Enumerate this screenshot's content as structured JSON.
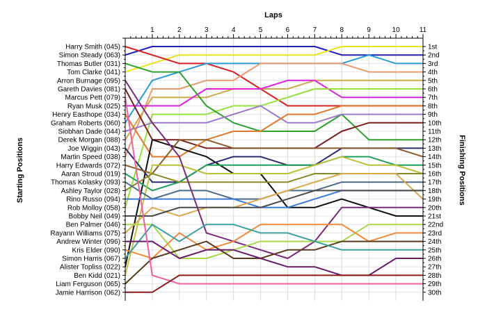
{
  "chart_data": {
    "type": "line",
    "title": "",
    "xlabel": "Laps",
    "ylabel_left": "Starting Positions",
    "ylabel_right": "Finishing Positions",
    "x": [
      0,
      1,
      2,
      3,
      4,
      5,
      6,
      7,
      8,
      9,
      10,
      11
    ],
    "x_tick_labels": [
      "1",
      "2",
      "3",
      "4",
      "5",
      "6",
      "7",
      "8",
      "9",
      "10",
      "11"
    ],
    "y_range": [
      1,
      30
    ],
    "y_inverted": true,
    "grid": true,
    "starting_labels": [
      "Harry Smith (045)",
      "Simon Steady (063)",
      "Thomas Butler (031)",
      "Tom Clarke (041)",
      "Arron Burnage (095)",
      "Gareth Davies (081)",
      "Marcus Pett (079)",
      "Ryan Musk (025)",
      "Henry Easthope (034)",
      "Graham Roberts (060)",
      "Siobhan Dade (044)",
      "Derek Morgan (088)",
      "Joe Wiggin (043)",
      "Martin Speed (038)",
      "Harry Edwards (072)",
      "Aaran Stroud (019)",
      "Thomas Kolasky (093)",
      "Ashley Taylor (028)",
      "Rino Russo (094)",
      "Rob Molloy (058)",
      "Bobby Neil (049)",
      "Ben Palmer (046)",
      "Rayann Williams (075)",
      "Andrew Winter (096)",
      "Kris Elder (090)",
      "Simon Harris (067)",
      "Alister Topliss (022)",
      "Ben Kidd (021)",
      "Liam Ferguson (065)",
      "Jamie Harrison (062)"
    ],
    "finishing_labels": [
      "1st",
      "2nd",
      "3rd",
      "4th",
      "5th",
      "6th",
      "7th",
      "8th",
      "9th",
      "10th",
      "11th",
      "12th",
      "13th",
      "14th",
      "15th",
      "16th",
      "17th",
      "18th",
      "19th",
      "20th",
      "21st",
      "22nd",
      "23rd",
      "24th",
      "25th",
      "26th",
      "27th",
      "28th",
      "29th",
      "30th"
    ],
    "series": [
      {
        "color": "#1f1fbf",
        "values": [
          2,
          1,
          1,
          1,
          1,
          1,
          1,
          1,
          2,
          2,
          2,
          2
        ]
      },
      {
        "color": "#e6e619",
        "values": [
          4,
          3,
          2,
          2,
          2,
          2,
          2,
          2,
          1,
          1,
          1,
          1
        ]
      },
      {
        "color": "#d82020",
        "values": [
          1,
          2,
          3,
          3,
          4,
          6,
          8,
          8,
          8,
          8,
          8,
          8
        ]
      },
      {
        "color": "#2b9ad8",
        "values": [
          10,
          5,
          4,
          3,
          3,
          3,
          3,
          3,
          3,
          2,
          3,
          3
        ]
      },
      {
        "color": "#e69a6e",
        "values": [
          14,
          6,
          6,
          5,
          5,
          3,
          3,
          3,
          3,
          4,
          4,
          4
        ]
      },
      {
        "color": "#cfa84a",
        "values": [
          12,
          7,
          7,
          7,
          6,
          6,
          6,
          5,
          5,
          5,
          5,
          5
        ]
      },
      {
        "color": "#e020e0",
        "values": [
          8,
          8,
          8,
          6,
          6,
          6,
          5,
          5,
          7,
          7,
          7,
          7
        ]
      },
      {
        "color": "#96e03c",
        "values": [
          20,
          9,
          9,
          9,
          8,
          8,
          7,
          6,
          6,
          6,
          6,
          6
        ]
      },
      {
        "color": "#2ea02e",
        "values": [
          3,
          4,
          4,
          8,
          10,
          11,
          11,
          11,
          9,
          12,
          12,
          12
        ]
      },
      {
        "color": "#9a78cf",
        "values": [
          11,
          10,
          10,
          10,
          9,
          8,
          10,
          10,
          9,
          9,
          9,
          9
        ]
      },
      {
        "color": "#7a1f1f",
        "values": [
          6,
          12,
          12,
          13,
          13,
          13,
          13,
          13,
          11,
          10,
          10,
          10
        ]
      },
      {
        "color": "#e07a2a",
        "values": [
          9,
          14,
          14,
          12,
          11,
          11,
          9,
          9,
          8,
          8,
          8,
          8
        ]
      },
      {
        "color": "#101010",
        "values": [
          27,
          12,
          13,
          14,
          16,
          16,
          20,
          20,
          19,
          20,
          21,
          21
        ]
      },
      {
        "color": "#2a2a6e",
        "values": [
          13,
          17,
          17,
          15,
          14,
          14,
          15,
          15,
          13,
          13,
          13,
          13
        ]
      },
      {
        "color": "#8a5a2a",
        "values": [
          15,
          16,
          12,
          12,
          13,
          13,
          13,
          13,
          13,
          13,
          13,
          14
        ]
      },
      {
        "color": "#1fa05a",
        "values": [
          16,
          18,
          17,
          15,
          15,
          15,
          15,
          15,
          14,
          14,
          15,
          15
        ]
      },
      {
        "color": "#bfbf3a",
        "values": [
          28,
          15,
          15,
          16,
          16,
          16,
          16,
          15,
          14,
          15,
          15,
          16
        ]
      },
      {
        "color": "#8a8a2a",
        "values": [
          18,
          16,
          17,
          17,
          17,
          17,
          17,
          16,
          16,
          16,
          16,
          16
        ]
      },
      {
        "color": "#4a6a8a",
        "values": [
          17,
          19,
          18,
          18,
          19,
          19,
          18,
          18,
          17,
          17,
          17,
          17
        ]
      },
      {
        "color": "#3a7ad8",
        "values": [
          19,
          19,
          19,
          19,
          19,
          20,
          20,
          19,
          18,
          18,
          18,
          18
        ]
      },
      {
        "color": "#d8a84a",
        "values": [
          23,
          20,
          21,
          20,
          20,
          19,
          18,
          17,
          16,
          16,
          16,
          19
        ]
      },
      {
        "color": "#4a4a4a",
        "values": [
          21,
          21,
          20,
          20,
          20,
          20,
          19,
          18,
          18,
          18,
          18,
          18
        ]
      },
      {
        "color": "#7a2a7a",
        "values": [
          5,
          10,
          14,
          23,
          24,
          25,
          26,
          24,
          20,
          20,
          20,
          20
        ]
      },
      {
        "color": "#a8d84a",
        "values": [
          22,
          22,
          26,
          26,
          25,
          24,
          24,
          24,
          24,
          22,
          22,
          22
        ]
      },
      {
        "color": "#f08a3a",
        "values": [
          25,
          26,
          23,
          25,
          24,
          22,
          22,
          22,
          22,
          24,
          23,
          23
        ]
      },
      {
        "color": "#5a3a1a",
        "values": [
          29,
          26,
          25,
          24,
          26,
          26,
          25,
          25,
          24,
          24,
          24,
          24
        ]
      },
      {
        "color": "#3aa0a0",
        "values": [
          26,
          22,
          24,
          22,
          22,
          23,
          23,
          24,
          25,
          25,
          25,
          25
        ]
      },
      {
        "color": "#6a1a6a",
        "values": [
          24,
          24,
          26,
          25,
          25,
          26,
          27,
          27,
          28,
          28,
          26,
          26
        ]
      },
      {
        "color": "#f060a0",
        "values": [
          7,
          28,
          29,
          29,
          29,
          29,
          29,
          29,
          29,
          29,
          29,
          29
        ]
      },
      {
        "color": "#8a1a1a",
        "values": [
          30,
          30,
          28,
          28,
          28,
          28,
          28,
          28,
          28,
          28,
          28,
          28
        ]
      }
    ]
  }
}
